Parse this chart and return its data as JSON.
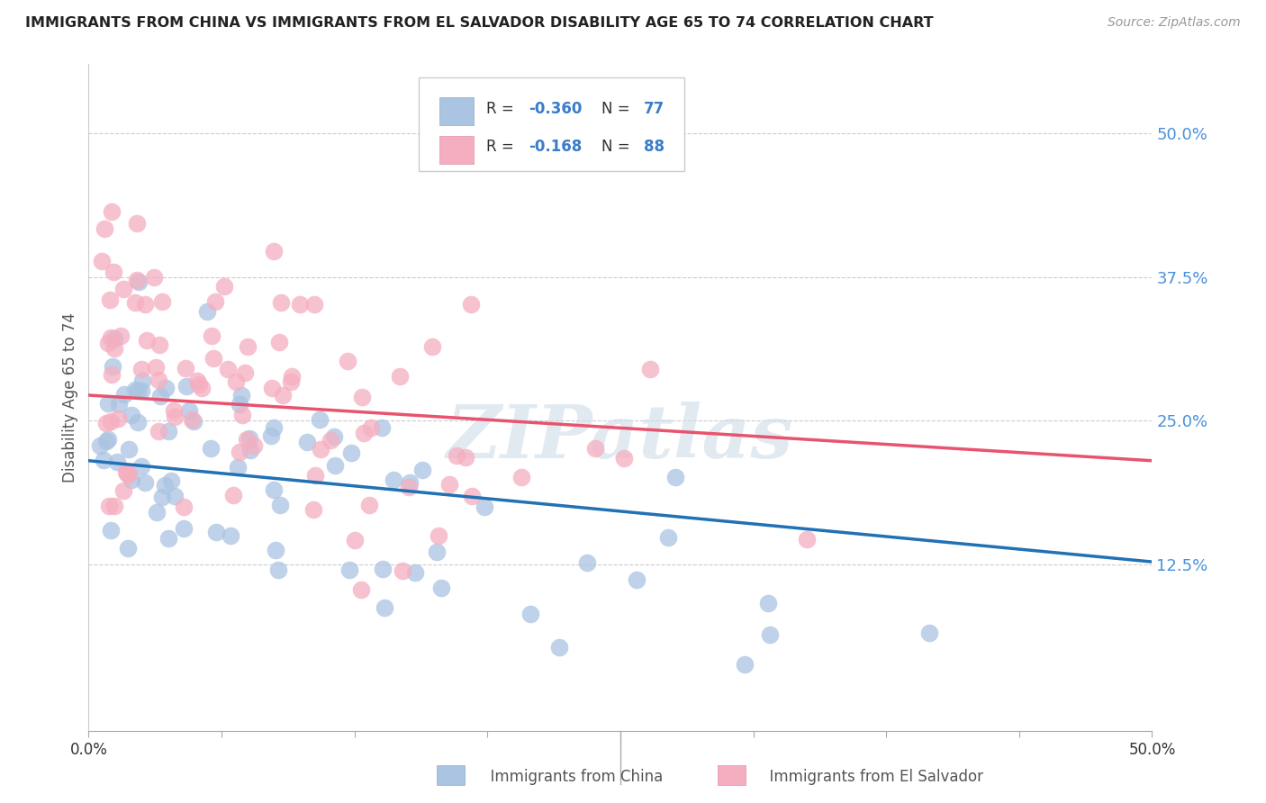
{
  "title": "IMMIGRANTS FROM CHINA VS IMMIGRANTS FROM EL SALVADOR DISABILITY AGE 65 TO 74 CORRELATION CHART",
  "source": "Source: ZipAtlas.com",
  "ylabel": "Disability Age 65 to 74",
  "ytick_labels": [
    "50.0%",
    "37.5%",
    "25.0%",
    "12.5%"
  ],
  "ytick_values": [
    0.5,
    0.375,
    0.25,
    0.125
  ],
  "xlim": [
    0.0,
    0.5
  ],
  "ylim": [
    -0.02,
    0.56
  ],
  "china_color": "#aac4e2",
  "salvador_color": "#f5aec0",
  "china_line_color": "#2171b5",
  "salvador_line_color": "#e8536e",
  "watermark": "ZIPatlas",
  "china_R": -0.36,
  "salvador_R": -0.168,
  "china_N": 77,
  "salvador_N": 88,
  "china_line_x0": 0.0,
  "china_line_y0": 0.215,
  "china_line_x1": 0.5,
  "china_line_y1": 0.127,
  "salvador_line_x0": 0.0,
  "salvador_line_y0": 0.272,
  "salvador_line_x1": 0.5,
  "salvador_line_y1": 0.215,
  "xtick_positions": [
    0.0,
    0.0625,
    0.125,
    0.1875,
    0.25,
    0.3125,
    0.375,
    0.4375,
    0.5
  ]
}
